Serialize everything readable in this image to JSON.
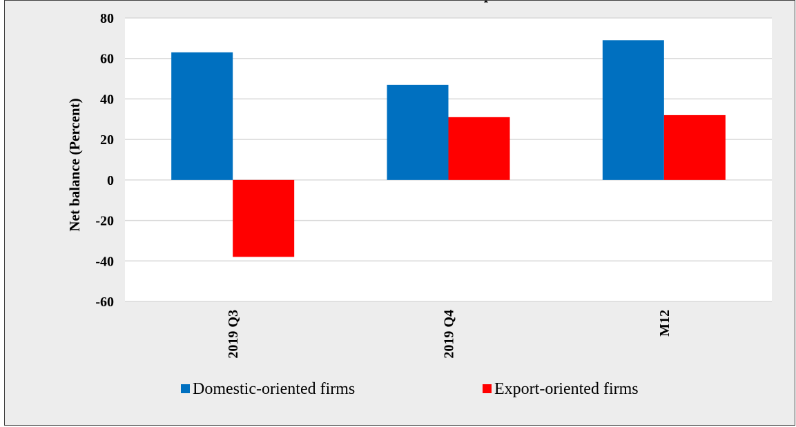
{
  "chart_data": {
    "type": "bar",
    "title": "p",
    "xlabel": "",
    "ylabel": "Net balance (Percent)",
    "categories": [
      "2019 Q3",
      "2019 Q4",
      "M12"
    ],
    "series": [
      {
        "name": "Domestic-oriented firms",
        "color": "#0070c0",
        "values": [
          63,
          47,
          69
        ]
      },
      {
        "name": "Export-oriented firms",
        "color": "#ff0000",
        "values": [
          -38,
          31,
          32
        ]
      }
    ],
    "ylim": [
      -60,
      80
    ],
    "yticks": [
      "80",
      "60",
      "40",
      "20",
      "0",
      "-20",
      "-40",
      "-60"
    ],
    "grid": true,
    "legend": "bottom"
  }
}
